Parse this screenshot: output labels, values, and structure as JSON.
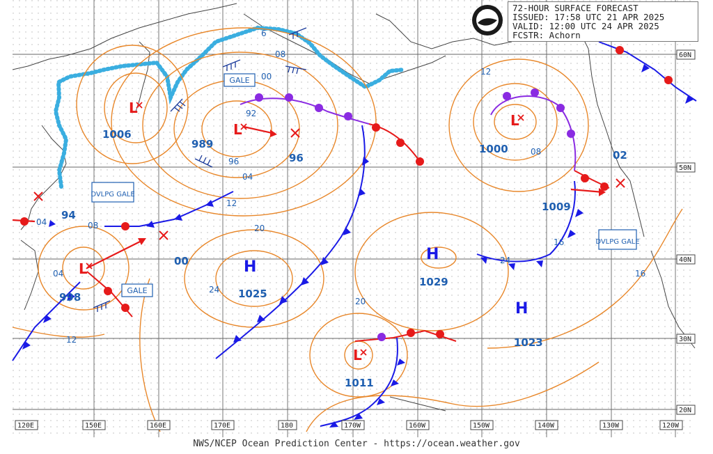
{
  "header": {
    "title": "72-HOUR SURFACE FORECAST",
    "issued": "ISSUED: 17:58 UTC 21 APR 2025",
    "valid": "VALID:  12:00 UTC 24 APR 2025",
    "forecaster": "FCSTR:  Achorn",
    "logo_text": "NOAA"
  },
  "footer": "NWS/NCEP Ocean Prediction Center - https://ocean.weather.gov",
  "lat_labels": [
    "60N",
    "50N",
    "40N",
    "30N",
    "20N"
  ],
  "lon_labels": [
    "120E",
    "150E",
    "160E",
    "170E",
    "180",
    "170W",
    "160W",
    "150W",
    "140W",
    "130W",
    "120W"
  ],
  "pressure_centers": [
    {
      "type": "L",
      "value": "1006"
    },
    {
      "type": "L",
      "value": "989"
    },
    {
      "type": "L",
      "value": "998"
    },
    {
      "type": "L",
      "value": "1000"
    },
    {
      "type": "L",
      "value": "1011"
    },
    {
      "type": "H",
      "value": "1025"
    },
    {
      "type": "H",
      "value": "1029"
    },
    {
      "type": "H",
      "value": "1023"
    }
  ],
  "isobar_labels": [
    "00",
    "08",
    "92",
    "96",
    "04",
    "12",
    "20",
    "24",
    "16",
    "02",
    "08",
    "16",
    "12",
    "20",
    "00",
    "94",
    "08",
    "04",
    "12",
    "04",
    "96",
    "6",
    "1009",
    "24"
  ],
  "warnings": [
    "GALE",
    "DVLPG GALE",
    "GALE",
    "DVLPG GALE"
  ],
  "colors": {
    "isobar": "#e8872a",
    "cold_front": "#1a1ae6",
    "warm_front": "#e61a1a",
    "occluded": "#8a2be2",
    "ice_edge": "#3aaee0",
    "label_blue": "#1f5fb0",
    "grid": "#555555",
    "coast": "#444444"
  }
}
